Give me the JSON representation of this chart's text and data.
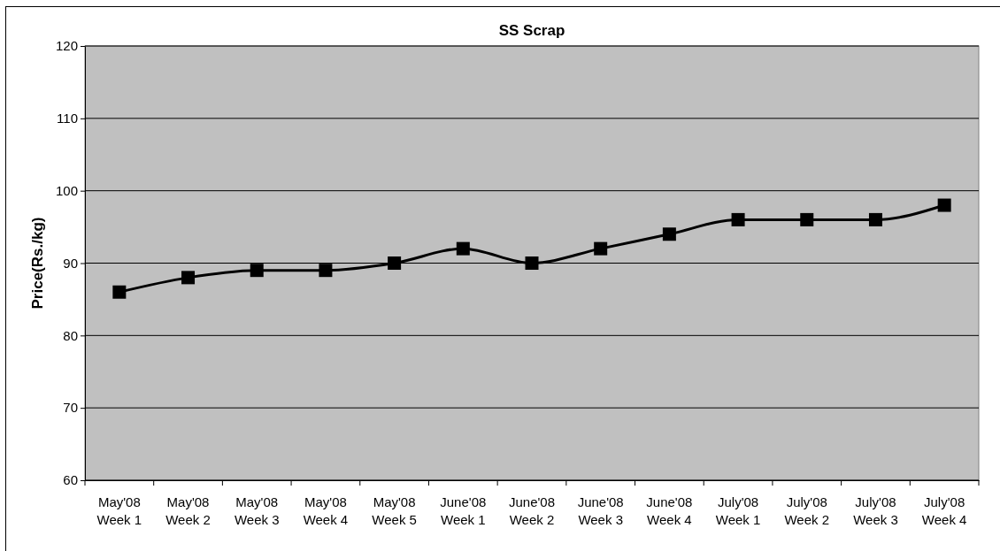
{
  "chart_data": {
    "type": "line",
    "title": "SS Scrap",
    "ylabel": "Price(Rs./kg)",
    "categories": [
      "May'08\nWeek 1",
      "May'08\nWeek 2",
      "May'08\nWeek 3",
      "May'08\nWeek 4",
      "May'08\nWeek 5",
      "June'08\nWeek 1",
      "June'08\nWeek 2",
      "June'08\nWeek 3",
      "June'08\nWeek 4",
      "July'08\nWeek 1",
      "July'08\nWeek 2",
      "July'08\nWeek 3",
      "July'08\nWeek 4"
    ],
    "series": [
      {
        "color": "#000000",
        "values": [
          86,
          88,
          89,
          89,
          90,
          92,
          90,
          92,
          94,
          96,
          96,
          96,
          98
        ]
      }
    ],
    "ylim": [
      60,
      120
    ],
    "yticks": [
      60,
      70,
      80,
      90,
      100,
      110,
      120
    ],
    "grid": "y",
    "marker": "square",
    "line_style": "solid"
  }
}
